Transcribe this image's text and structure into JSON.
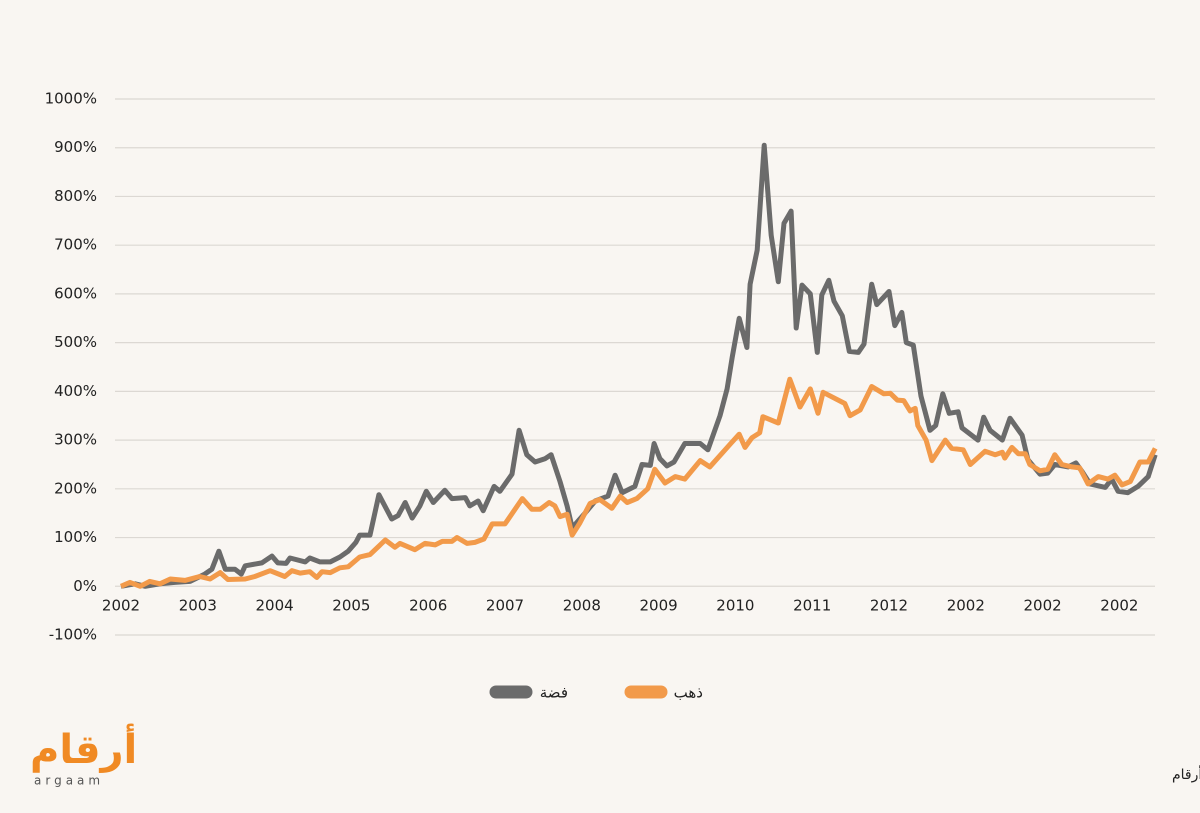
{
  "chart_data": {
    "type": "line",
    "xlim": [
      0,
      162
    ],
    "xticks": [
      {
        "value": 0,
        "label": "2002"
      },
      {
        "value": 12,
        "label": "2003"
      },
      {
        "value": 24,
        "label": "2004"
      },
      {
        "value": 36,
        "label": "2005"
      },
      {
        "value": 48,
        "label": "2006"
      },
      {
        "value": 60,
        "label": "2007"
      },
      {
        "value": 72,
        "label": "2008"
      },
      {
        "value": 84,
        "label": "2009"
      },
      {
        "value": 96,
        "label": "2010"
      },
      {
        "value": 108,
        "label": "2011"
      },
      {
        "value": 120,
        "label": "2012"
      },
      {
        "value": 132,
        "label": "2002"
      },
      {
        "value": 144,
        "label": "2002"
      },
      {
        "value": 156,
        "label": "2002"
      }
    ],
    "ylim": [
      -100,
      1000
    ],
    "yticks": [
      {
        "value": -100,
        "label": "-100%"
      },
      {
        "value": 0,
        "label": "0%"
      },
      {
        "value": 100,
        "label": "100%"
      },
      {
        "value": 200,
        "label": "200%"
      },
      {
        "value": 300,
        "label": "300%"
      },
      {
        "value": 400,
        "label": "400%"
      },
      {
        "value": 500,
        "label": "500%"
      },
      {
        "value": 600,
        "label": "600%"
      },
      {
        "value": 700,
        "label": "700%"
      },
      {
        "value": 800,
        "label": "800%"
      },
      {
        "value": 900,
        "label": "900%"
      },
      {
        "value": 1000,
        "label": "1000%"
      }
    ],
    "grid": true,
    "series": [
      {
        "name": "فضة",
        "color": "#6b6b6b",
        "x": [
          0,
          2.2,
          3.8,
          6.1,
          8.4,
          10.8,
          13.1,
          14.2,
          15.3,
          16.3,
          17.8,
          18.8,
          19.4,
          22.0,
          23.6,
          24.5,
          25.8,
          26.4,
          28.8,
          29.5,
          31.1,
          32.7,
          34.2,
          35.5,
          36.7,
          37.3,
          38.9,
          40.3,
          42.3,
          43.3,
          44.4,
          45.5,
          46.7,
          47.7,
          48.8,
          50.6,
          51.7,
          53.8,
          54.5,
          55.8,
          56.6,
          58.3,
          59.2,
          61.1,
          62.2,
          63.4,
          64.7,
          66.3,
          67.2,
          68.6,
          69.7,
          70.5,
          72.5,
          74.1,
          76.1,
          77.2,
          78.3,
          80.3,
          81.4,
          82.7,
          83.3,
          84.2,
          85.3,
          86.4,
          88.1,
          90.5,
          91.7,
          93.6,
          94.7,
          95.5,
          96.6,
          97.8,
          98.3,
          99.4,
          100.5,
          101.6,
          102.7,
          103.6,
          104.7,
          105.5,
          106.4,
          107.7,
          108.8,
          109.5,
          110.6,
          111.4,
          112.7,
          113.8,
          115.2,
          116.1,
          117.3,
          118.1,
          120.0,
          120.9,
          122.0,
          122.7,
          123.8,
          125.0,
          126.4,
          127.3,
          128.4,
          129.4,
          130.8,
          131.4,
          133.9,
          134.8,
          135.8,
          137.7,
          138.9,
          140.8,
          141.7,
          143.6,
          144.8,
          145.9,
          148.0,
          149.2,
          150.2,
          151.4,
          153.8,
          154.8,
          155.8,
          157.3,
          158.9,
          160.5,
          161.6
        ],
        "values": [
          0,
          5,
          0,
          5,
          8,
          10,
          25,
          35,
          72,
          35,
          35,
          25,
          42,
          48,
          62,
          48,
          47,
          58,
          50,
          58,
          50,
          50,
          60,
          72,
          90,
          105,
          105,
          188,
          138,
          145,
          172,
          140,
          165,
          195,
          172,
          197,
          180,
          182,
          165,
          175,
          155,
          205,
          195,
          230,
          320,
          270,
          255,
          262,
          270,
          215,
          165,
          120,
          150,
          175,
          185,
          228,
          192,
          205,
          250,
          248,
          293,
          262,
          247,
          255,
          293,
          293,
          280,
          350,
          405,
          470,
          550,
          490,
          620,
          690,
          905,
          720,
          625,
          745,
          770,
          530,
          618,
          600,
          480,
          598,
          628,
          585,
          555,
          482,
          480,
          497,
          620,
          578,
          605,
          535,
          562,
          500,
          495,
          390,
          320,
          330,
          395,
          355,
          358,
          325,
          300,
          347,
          320,
          300,
          345,
          310,
          260,
          230,
          232,
          250,
          245,
          253,
          235,
          210,
          203,
          220,
          195,
          192,
          205,
          225,
          270
        ]
      },
      {
        "name": "ذهب",
        "color": "#f29a4a",
        "x": [
          0,
          1.4,
          3.0,
          4.5,
          6.1,
          7.7,
          10.0,
          12.3,
          13.9,
          15.5,
          16.7,
          19.4,
          20.9,
          23.3,
          25.6,
          26.7,
          28.0,
          29.5,
          30.6,
          31.4,
          32.7,
          34.2,
          35.5,
          37.3,
          38.9,
          41.3,
          42.8,
          43.6,
          45.9,
          47.5,
          49.1,
          50.2,
          51.7,
          52.5,
          54.1,
          55.3,
          56.7,
          58.0,
          60.0,
          62.7,
          64.2,
          65.5,
          66.9,
          67.8,
          68.6,
          69.7,
          70.5,
          71.7,
          73.3,
          74.8,
          76.7,
          78.0,
          79.1,
          80.6,
          82.3,
          83.4,
          85.0,
          86.6,
          88.1,
          90.5,
          92.0,
          95.2,
          96.6,
          97.5,
          98.6,
          99.8,
          100.3,
          102.7,
          104.5,
          106.1,
          107.7,
          108.9,
          109.7,
          113.1,
          113.9,
          115.5,
          117.3,
          119.2,
          120.2,
          121.3,
          122.3,
          123.3,
          124.1,
          124.5,
          125.8,
          126.7,
          128.8,
          129.8,
          131.6,
          132.7,
          135.0,
          136.6,
          137.7,
          138.1,
          139.2,
          140.2,
          141.3,
          142.0,
          143.6,
          144.8,
          145.9,
          147.0,
          148.6,
          149.8,
          151.1,
          152.7,
          154.2,
          155.3,
          156.4,
          157.7,
          159.2,
          160.5,
          161.6
        ],
        "values": [
          0,
          8,
          0,
          10,
          5,
          15,
          12,
          20,
          15,
          28,
          14,
          15,
          20,
          32,
          20,
          32,
          27,
          30,
          18,
          30,
          28,
          38,
          40,
          60,
          65,
          95,
          80,
          88,
          75,
          88,
          85,
          92,
          92,
          100,
          88,
          90,
          97,
          128,
          128,
          180,
          158,
          158,
          172,
          165,
          143,
          148,
          105,
          130,
          170,
          178,
          160,
          185,
          172,
          180,
          200,
          240,
          212,
          225,
          220,
          258,
          245,
          292,
          312,
          285,
          305,
          315,
          348,
          335,
          425,
          368,
          405,
          355,
          398,
          375,
          350,
          362,
          410,
          395,
          396,
          382,
          381,
          360,
          365,
          330,
          300,
          258,
          300,
          283,
          280,
          250,
          277,
          270,
          275,
          263,
          285,
          272,
          272,
          250,
          237,
          240,
          270,
          250,
          245,
          243,
          210,
          225,
          220,
          228,
          208,
          215,
          255,
          255,
          283
        ]
      }
    ]
  },
  "source": "المصدر :  جولدموني للأبحاث//أرقام",
  "logo": {
    "arabic": "أرقام",
    "latin": "argaam"
  }
}
